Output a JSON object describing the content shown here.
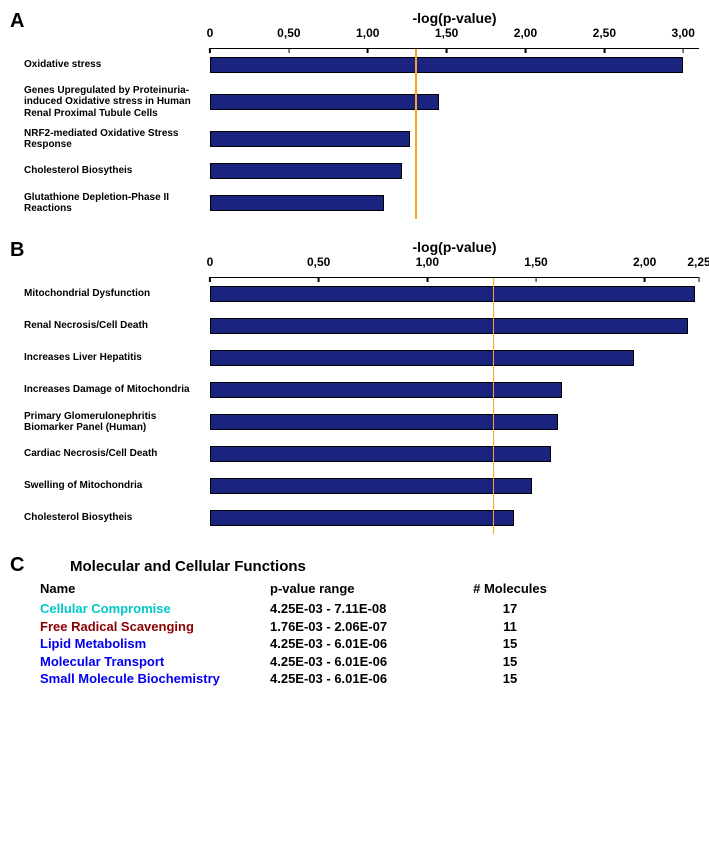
{
  "colors": {
    "bar_fill": "#1a237e",
    "threshold": "#f5a623",
    "bg": "#ffffff"
  },
  "panelA": {
    "letter": "A",
    "axis_title": "-log(p-value)",
    "xmax": 3.1,
    "ticks": [
      {
        "pos": 0.0,
        "label": "0"
      },
      {
        "pos": 0.5,
        "label": "0,50"
      },
      {
        "pos": 1.0,
        "label": "1,00"
      },
      {
        "pos": 1.5,
        "label": "1,50"
      },
      {
        "pos": 2.0,
        "label": "2,00"
      },
      {
        "pos": 2.5,
        "label": "2,50"
      },
      {
        "pos": 3.0,
        "label": "3,00"
      }
    ],
    "threshold": 1.3,
    "bars": [
      {
        "label": "Oxidative stress",
        "value": 3.0,
        "tall": false
      },
      {
        "label": "Genes Upregulated by Proteinuria-induced Oxidative stress in Human Renal Proximal Tubule Cells",
        "value": 1.45,
        "tall": true
      },
      {
        "label": "NRF2-mediated Oxidative Stress Response",
        "value": 1.27,
        "tall": false
      },
      {
        "label": "Cholesterol Biosytheis",
        "value": 1.22,
        "tall": false
      },
      {
        "label": "Glutathione Depletion-Phase II Reactions",
        "value": 1.1,
        "tall": false
      }
    ]
  },
  "panelB": {
    "letter": "B",
    "axis_title": "-log(p-value)",
    "xmax": 2.25,
    "ticks": [
      {
        "pos": 0.0,
        "label": "0"
      },
      {
        "pos": 0.5,
        "label": "0,50"
      },
      {
        "pos": 1.0,
        "label": "1,00"
      },
      {
        "pos": 1.5,
        "label": "1,50"
      },
      {
        "pos": 2.0,
        "label": "2,00"
      },
      {
        "pos": 2.25,
        "label": "2,25"
      }
    ],
    "threshold": 1.3,
    "bars": [
      {
        "label": "Mitochondrial Dysfunction",
        "value": 2.23
      },
      {
        "label": "Renal Necrosis/Cell Death",
        "value": 2.2
      },
      {
        "label": "Increases Liver Hepatitis",
        "value": 1.95
      },
      {
        "label": "Increases Damage of Mitochondria",
        "value": 1.62
      },
      {
        "label": "Primary Glomerulonephritis Biomarker Panel (Human)",
        "value": 1.6
      },
      {
        "label": "Cardiac Necrosis/Cell Death",
        "value": 1.57
      },
      {
        "label": "Swelling of Mitochondria",
        "value": 1.48
      },
      {
        "label": "Cholesterol Biosytheis",
        "value": 1.4
      }
    ]
  },
  "panelC": {
    "letter": "C",
    "title": "Molecular and Cellular Functions",
    "headers": {
      "name": "Name",
      "range": "p-value range",
      "mol": "# Molecules"
    },
    "rows": [
      {
        "name": "Cellular Compromise",
        "range": "4.25E-03 - 7.11E-08",
        "mol": "17",
        "color": "#00c9c9"
      },
      {
        "name": "Free Radical Scavenging",
        "range": "1.76E-03 - 2.06E-07",
        "mol": "11",
        "color": "#8b0000"
      },
      {
        "name": "Lipid Metabolism",
        "range": "4.25E-03 - 6.01E-06",
        "mol": "15",
        "color": "#0000ee"
      },
      {
        "name": "Molecular Transport",
        "range": "4.25E-03 - 6.01E-06",
        "mol": "15",
        "color": "#0000ee"
      },
      {
        "name": "Small Molecule Biochemistry",
        "range": "4.25E-03 - 6.01E-06",
        "mol": "15",
        "color": "#0000ee"
      }
    ]
  }
}
